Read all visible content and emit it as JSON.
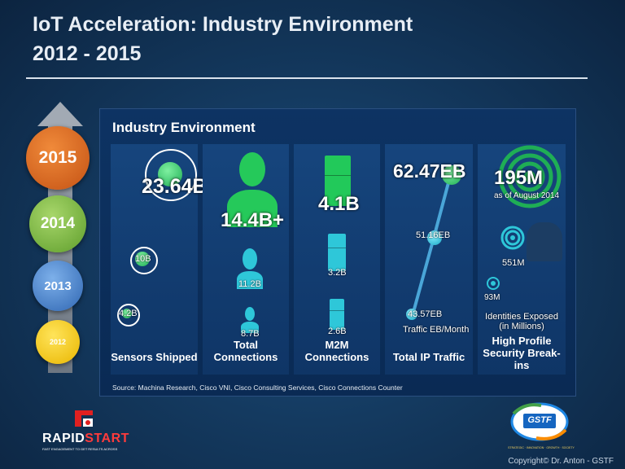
{
  "slide": {
    "title_line1": "IoT Acceleration: Industry Environment",
    "title_line2": "2012 - 2015"
  },
  "timeline": {
    "years": [
      "2015",
      "2014",
      "2013",
      "2012"
    ]
  },
  "panel": {
    "title": "Industry Environment",
    "source": "Source: Machina Research, Cisco VNI, Cisco Consulting Services, Cisco Connections Counter",
    "sensors": {
      "label": "Sensors Shipped",
      "values": [
        "23.64B",
        "10B",
        "4.2B"
      ]
    },
    "connections": {
      "label": "Total Connections",
      "values": [
        "14.4B+",
        "11.2B",
        "8.7B"
      ]
    },
    "m2m": {
      "label": "M2M Connections",
      "values": [
        "4.1B",
        "3.2B",
        "2.6B"
      ]
    },
    "traffic": {
      "label": "Total IP Traffic",
      "values": [
        "62.47EB",
        "51.16EB",
        "43.57EB"
      ],
      "unit_label": "Traffic EB/Month"
    },
    "security": {
      "label_line1": "High Profile",
      "label_line2": "Security Break-ins",
      "values": [
        "195M",
        "551M",
        "93M"
      ],
      "as_of": "as of August 2014",
      "identities_line1": "Identities Exposed",
      "identities_line2": "(in Millions)"
    }
  },
  "logos": {
    "rapid_word1": "RAPID",
    "rapid_word2": "START",
    "rapid_tagline": "FAST ENGAGEMENT TO GET RESULTS ACROSS",
    "gstf_text": "GSTF",
    "gstf_tagline": "STRATEGIC · INNOVATION · GROWTH · SOCIETY"
  },
  "footer": {
    "copyright": "Copyright© Dr. Anton - GSTF"
  },
  "colors": {
    "accent_green": "#1fae55",
    "accent_cyan": "#18a7c6",
    "panel_bg": "#0d3363"
  }
}
